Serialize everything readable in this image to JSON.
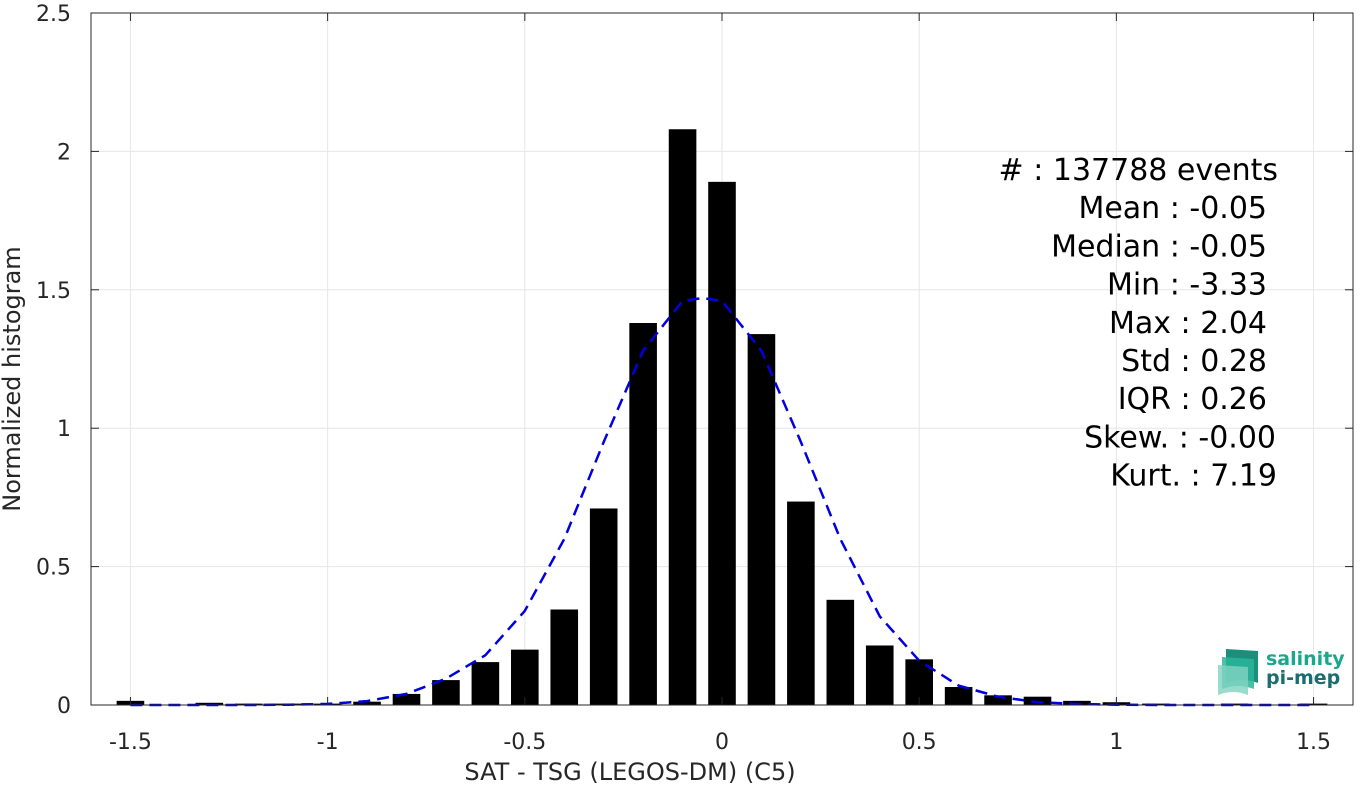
{
  "chart_data": {
    "type": "bar",
    "title": "",
    "xlabel": "SAT - TSG (LEGOS-DM) (C5)",
    "ylabel": "Normalized histogram",
    "xlim": [
      -1.6,
      1.6
    ],
    "ylim": [
      0,
      2.5
    ],
    "xticks": [
      -1.5,
      -1,
      -0.5,
      0,
      0.5,
      1,
      1.5
    ],
    "xtick_labels": [
      "-1.5",
      "-1",
      "-0.5",
      "0",
      "0.5",
      "1",
      "1.5"
    ],
    "yticks": [
      0,
      0.5,
      1,
      1.5,
      2,
      2.5
    ],
    "ytick_labels": [
      "0",
      "0.5",
      "1",
      "1.5",
      "2",
      "2.5"
    ],
    "grid": true,
    "bar_color": "#000000",
    "bar_width": 0.07,
    "bars": {
      "x": [
        -1.5,
        -1.3,
        -1.2,
        -1.1,
        -1.0,
        -0.9,
        -0.8,
        -0.7,
        -0.6,
        -0.5,
        -0.4,
        -0.3,
        -0.2,
        -0.1,
        0.0,
        0.1,
        0.2,
        0.3,
        0.4,
        0.5,
        0.6,
        0.7,
        0.8,
        0.9,
        1.0,
        1.1,
        1.3,
        1.5
      ],
      "values": [
        0.015,
        0.008,
        0.005,
        0.005,
        0.005,
        0.012,
        0.04,
        0.09,
        0.155,
        0.2,
        0.345,
        0.71,
        1.38,
        2.08,
        1.89,
        1.34,
        0.735,
        0.38,
        0.215,
        0.165,
        0.065,
        0.035,
        0.03,
        0.015,
        0.01,
        0.005,
        0.005,
        0.005
      ]
    },
    "fit": {
      "style": "dashed",
      "color": "#0000e0",
      "x": [
        -1.5,
        -1.4,
        -1.3,
        -1.2,
        -1.1,
        -1.0,
        -0.9,
        -0.8,
        -0.7,
        -0.6,
        -0.5,
        -0.4,
        -0.3,
        -0.2,
        -0.1,
        -0.05,
        0.0,
        0.1,
        0.2,
        0.3,
        0.4,
        0.5,
        0.6,
        0.7,
        0.8,
        0.9,
        1.0,
        1.1,
        1.2,
        1.3,
        1.4,
        1.5
      ],
      "values": [
        0.0,
        0.0,
        0.0,
        0.0,
        0.001,
        0.004,
        0.014,
        0.04,
        0.095,
        0.18,
        0.34,
        0.6,
        0.95,
        1.28,
        1.46,
        1.47,
        1.46,
        1.28,
        0.95,
        0.6,
        0.32,
        0.16,
        0.07,
        0.03,
        0.01,
        0.004,
        0.001,
        0.0,
        0.0,
        0.0,
        0.0,
        0.0
      ]
    }
  },
  "stats": [
    "#  : 137788 events",
    "Mean : -0.05",
    "Median : -0.05",
    "Min : -3.33",
    "Max : 2.04",
    "Std : 0.28",
    "IQR : 0.26",
    "Skew. : -0.00",
    "Kurt. : 7.19"
  ],
  "logo": {
    "line1": "salinity",
    "line2": "pi-mep",
    "colors": [
      "#1aa88c",
      "#1a6e70"
    ]
  }
}
